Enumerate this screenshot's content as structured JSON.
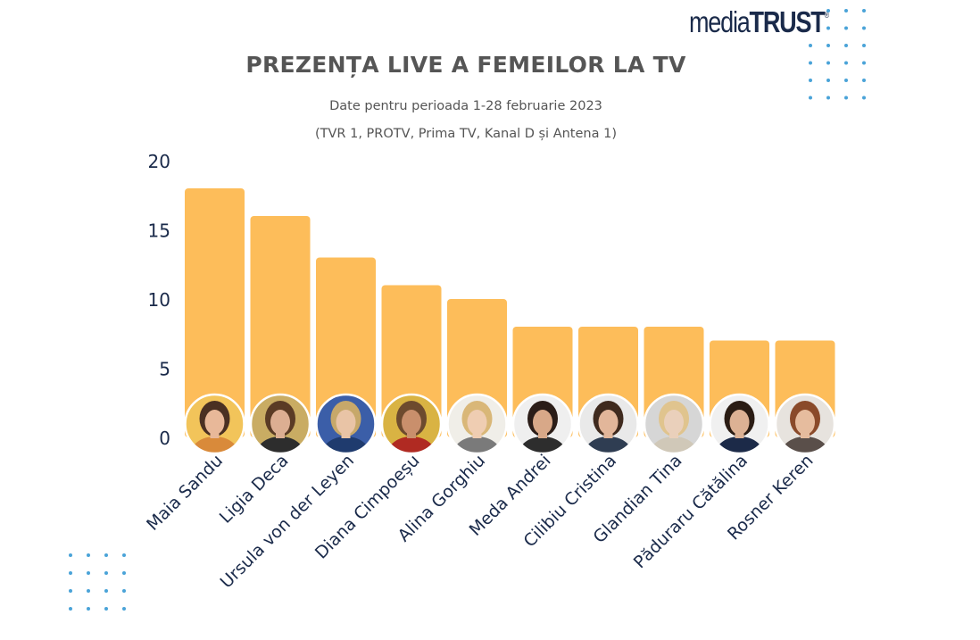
{
  "logo": {
    "prefix": "media",
    "brand": "TRUST",
    "mark": "®"
  },
  "title": "PREZENȚA LIVE A FEMEILOR LA TV",
  "subtitle_line1": "Date pentru perioada 1-28 februarie 2023",
  "subtitle_line2": "(TVR 1, PROTV, Prima TV, Kanal D și Antena 1)",
  "colors": {
    "bar": "#FDBD5A",
    "axis_text": "#1a2a4a",
    "title": "#555555",
    "dots": "#4aa3d8"
  },
  "chart_data": {
    "type": "bar",
    "categories": [
      "Maia Sandu",
      "Ligia Deca",
      "Ursula von der Leyen",
      "Diana Cimpoeșu",
      "Alina Gorghiu",
      "Meda Andrei",
      "Cilibiu Cristina",
      "Glandian Tina",
      "Păduraru Cătălina",
      "Rosner Keren"
    ],
    "values": [
      18,
      16,
      13,
      11,
      10,
      8,
      8,
      8,
      7,
      7
    ],
    "ylim": [
      0,
      20
    ],
    "yticks": [
      0,
      5,
      10,
      15,
      20
    ],
    "grid": false,
    "legend": "none",
    "bar_decoration": "circular portrait photo at base of each bar"
  }
}
